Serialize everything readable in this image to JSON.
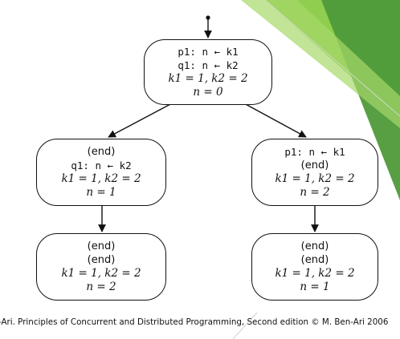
{
  "diagram": {
    "root": {
      "lines": [
        "p1: n ← k1",
        "q1: n ← k2",
        "k1 = 1, k2 = 2",
        "n = 0"
      ]
    },
    "left_mid": {
      "lines": [
        "(end)",
        "q1: n ← k2",
        "k1 = 1, k2 = 2",
        "n = 1"
      ]
    },
    "right_mid": {
      "lines": [
        "p1: n ← k1",
        "(end)",
        "k1 = 1, k2 = 2",
        "n = 2"
      ]
    },
    "left_bottom": {
      "lines": [
        "(end)",
        "(end)",
        "k1 = 1, k2 = 2",
        "n = 2"
      ]
    },
    "right_bottom": {
      "lines": [
        "(end)",
        "(end)",
        "k1 = 1, k2 = 2",
        "n = 1"
      ]
    }
  },
  "caption": "-Ari. Principles of Concurrent and Distributed Programming, Second edition © M. Ben-Ari 2006",
  "colors": {
    "accent_dark": "#4f9a3a",
    "accent_light": "#8fce4e",
    "ink": "#111111"
  }
}
